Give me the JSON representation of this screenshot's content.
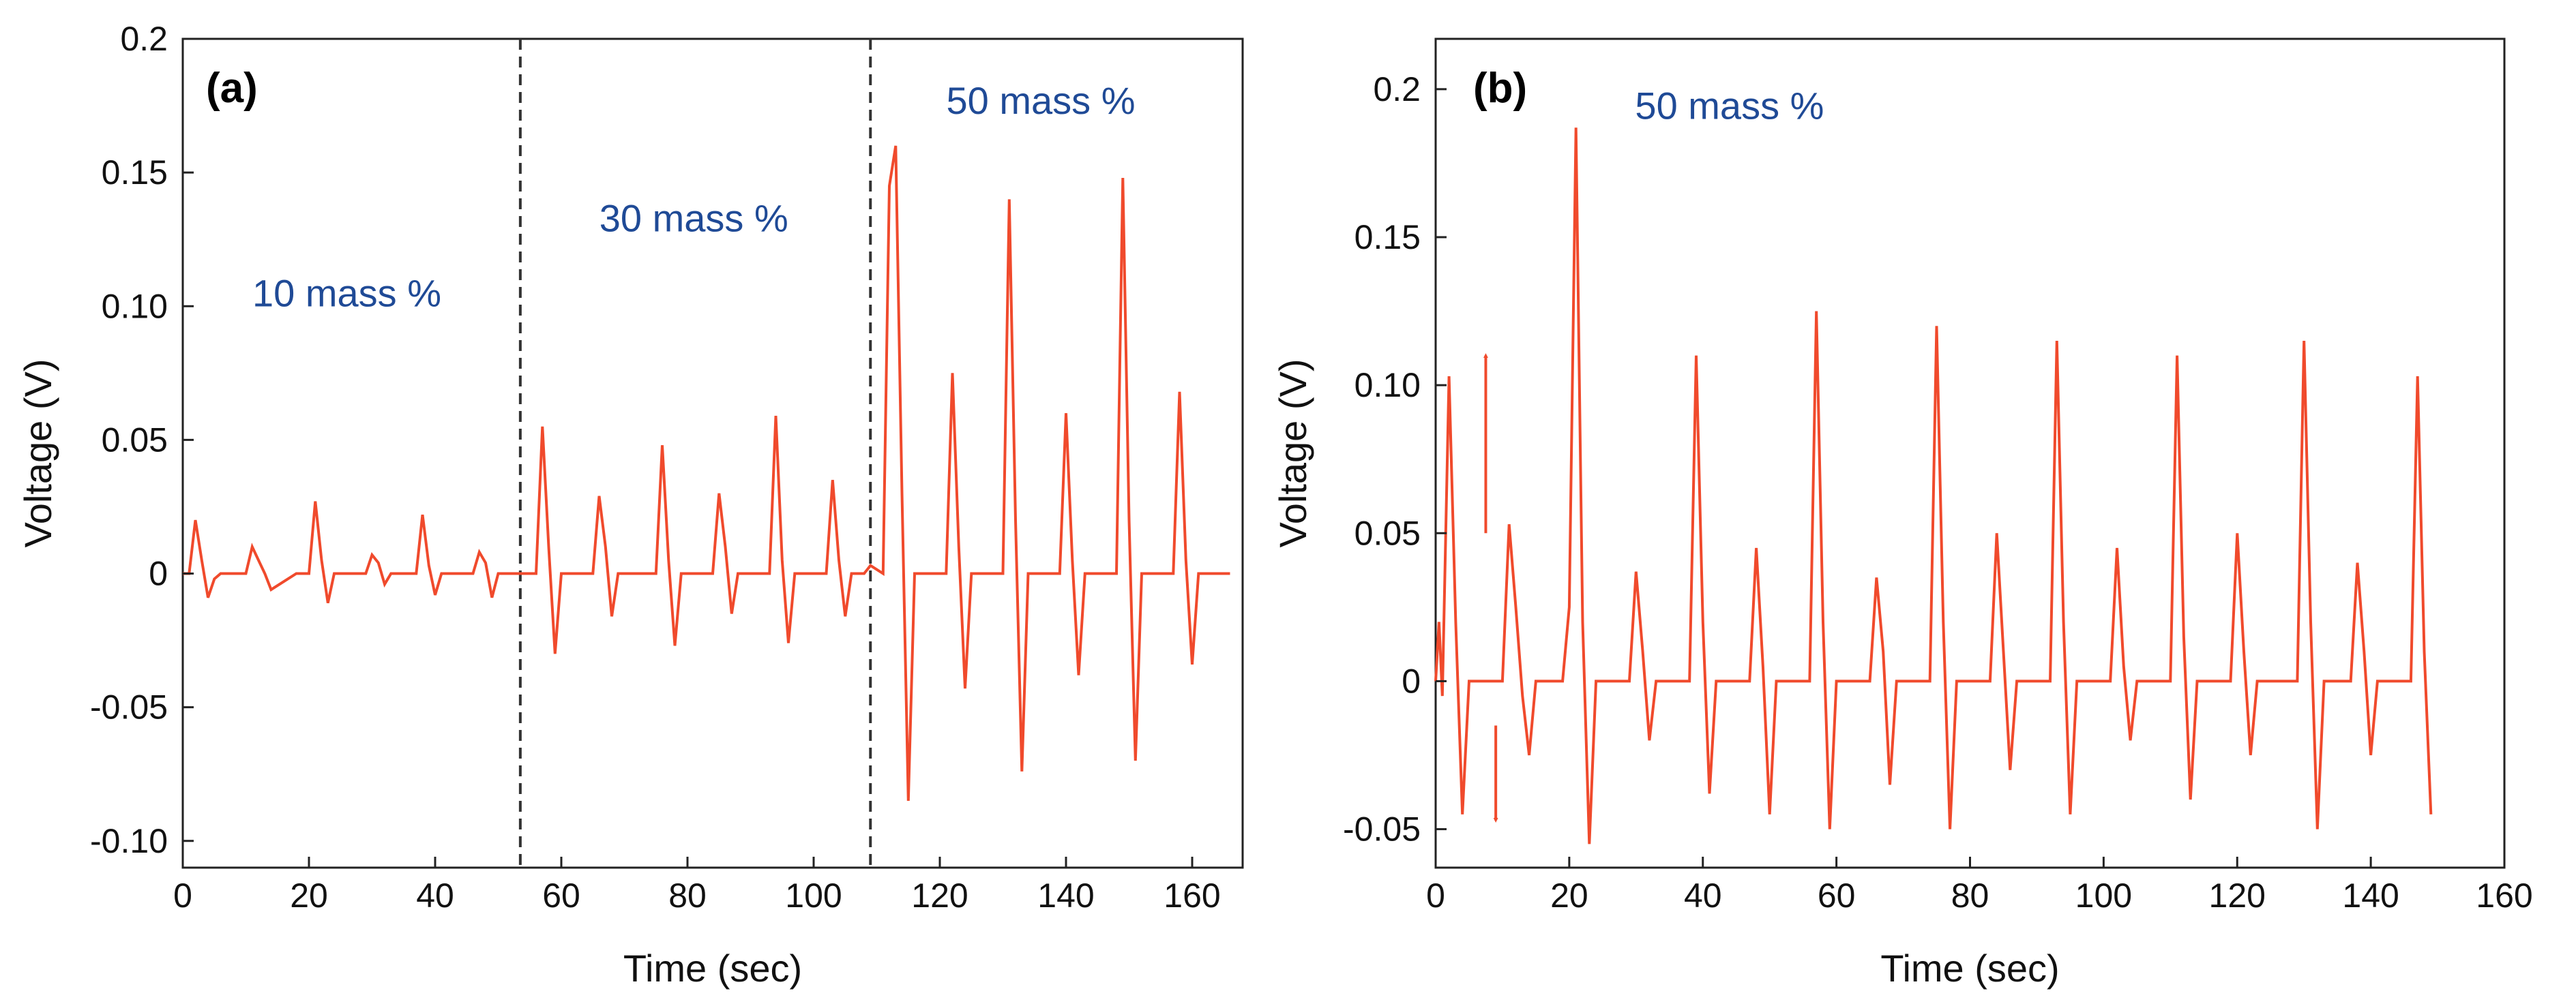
{
  "colors": {
    "trace": "#f04a2c",
    "annotation": "#1f4a96",
    "axis": "#222222"
  },
  "chart_data": [
    {
      "type": "line",
      "panel_label": "(a)",
      "xlabel": "Time (sec)",
      "ylabel": "Voltage (V)",
      "xlim": [
        0,
        168
      ],
      "ylim": [
        -0.11,
        0.2
      ],
      "x_ticks": [
        0,
        20,
        40,
        60,
        80,
        100,
        120,
        140,
        160
      ],
      "x_tick_labels": [
        "0",
        "20",
        "40",
        "60",
        "80",
        "100",
        "120",
        "140",
        "160"
      ],
      "y_ticks": [
        -0.1,
        -0.05,
        0,
        0.05,
        0.1,
        0.15,
        0.2
      ],
      "y_tick_labels": [
        "-0.10",
        "-0.05",
        "0",
        "0.05",
        "0.10",
        "0.15",
        "0.2"
      ],
      "grid": false,
      "dividers": [
        53.5,
        109
      ],
      "annotations": [
        {
          "text": "10 mass %",
          "x": 26,
          "y": 0.1
        },
        {
          "text": "30 mass %",
          "x": 81,
          "y": 0.128
        },
        {
          "text": "50 mass %",
          "x": 136,
          "y": 0.172
        }
      ],
      "series": [
        {
          "name": "Voltage",
          "x": [
            0,
            1,
            2,
            3,
            4,
            5,
            6,
            10,
            11,
            12,
            13,
            14,
            18,
            20,
            21,
            22,
            23,
            24,
            29,
            30,
            31,
            32,
            33,
            37,
            38,
            39,
            40,
            41,
            42,
            46,
            47,
            48,
            49,
            50,
            53,
            54,
            56,
            57,
            58,
            59,
            60,
            65,
            66,
            67,
            68,
            69,
            70,
            75,
            76,
            77,
            78,
            79,
            84,
            85,
            86,
            87,
            88,
            93,
            94,
            95,
            96,
            97,
            102,
            103,
            104,
            105,
            106,
            108,
            109,
            111,
            112,
            113,
            114,
            115,
            116,
            121,
            122,
            123,
            124,
            125,
            130,
            131,
            132,
            133,
            134,
            139,
            140,
            141,
            142,
            143,
            148,
            149,
            150,
            151,
            152,
            157,
            158,
            159,
            160,
            161,
            166
          ],
          "values": [
            0,
            0,
            0.02,
            0.005,
            -0.009,
            -0.002,
            0,
            0,
            0.01,
            0.005,
            0,
            -0.006,
            0,
            0,
            0.027,
            0.005,
            -0.011,
            0,
            0,
            0.007,
            0.004,
            -0.004,
            0,
            0,
            0.022,
            0.003,
            -0.008,
            0,
            0,
            0,
            0.008,
            0.004,
            -0.009,
            0,
            0,
            0,
            0,
            0.055,
            0.01,
            -0.03,
            0,
            0,
            0.029,
            0.01,
            -0.016,
            0,
            0,
            0,
            0.048,
            0.005,
            -0.027,
            0,
            0,
            0.03,
            0.01,
            -0.015,
            0,
            0,
            0.059,
            0.005,
            -0.026,
            0,
            0,
            0.035,
            0.005,
            -0.016,
            0,
            0,
            0.003,
            0,
            0.145,
            0.16,
            0.03,
            -0.085,
            0,
            0,
            0.075,
            0.01,
            -0.043,
            0,
            0,
            0.14,
            0.02,
            -0.074,
            0,
            0,
            0.06,
            0.005,
            -0.038,
            0,
            0,
            0.148,
            0.02,
            -0.07,
            0,
            0,
            0.068,
            0.005,
            -0.034,
            0,
            0
          ]
        }
      ]
    },
    {
      "type": "line",
      "panel_label": "(b)",
      "xlabel": "Time (sec)",
      "ylabel": "Voltage (V)",
      "xlim": [
        0,
        160
      ],
      "ylim": [
        -0.063,
        0.217
      ],
      "x_ticks": [
        0,
        20,
        40,
        60,
        80,
        100,
        120,
        140,
        160
      ],
      "x_tick_labels": [
        "0",
        "20",
        "40",
        "60",
        "80",
        "100",
        "120",
        "140",
        "160"
      ],
      "y_ticks": [
        -0.05,
        0,
        0.05,
        0.1,
        0.15,
        0.2
      ],
      "y_tick_labels": [
        "-0.05",
        "0",
        "0.05",
        "0.10",
        "0.15",
        "0.2"
      ],
      "grid": false,
      "annotations": [
        {
          "text": "50 mass %",
          "x": 44,
          "y": 0.19
        }
      ],
      "arrows": [
        {
          "x": 7.5,
          "from": 0.05,
          "to": 0.11
        },
        {
          "x": 9,
          "from": -0.015,
          "to": -0.047
        }
      ],
      "series": [
        {
          "name": "Voltage",
          "x": [
            0,
            0.5,
            1,
            2,
            3,
            4,
            5,
            10,
            11,
            12,
            13,
            14,
            15,
            19,
            20,
            21,
            22,
            23,
            24,
            29,
            30,
            31,
            32,
            33,
            38,
            39,
            40,
            41,
            42,
            47,
            48,
            49,
            50,
            51,
            56,
            57,
            58,
            59,
            60,
            65,
            66,
            67,
            68,
            69,
            74,
            75,
            76,
            77,
            78,
            83,
            84,
            85,
            86,
            87,
            92,
            93,
            94,
            95,
            96,
            101,
            102,
            103,
            104,
            105,
            110,
            111,
            112,
            113,
            114,
            119,
            120,
            121,
            122,
            123,
            129,
            130,
            131,
            132,
            133,
            137,
            138,
            139,
            140,
            141,
            146,
            147,
            148,
            149
          ],
          "values": [
            0,
            0.02,
            -0.005,
            0.103,
            0.02,
            -0.045,
            0,
            0,
            0.053,
            0.025,
            -0.005,
            -0.025,
            0,
            0,
            0.025,
            0.187,
            0.02,
            -0.055,
            0,
            0,
            0.037,
            0.01,
            -0.02,
            0,
            0,
            0.11,
            0.02,
            -0.038,
            0,
            0,
            0.045,
            0.005,
            -0.045,
            0,
            0,
            0.125,
            0.02,
            -0.05,
            0,
            0,
            0.035,
            0.01,
            -0.035,
            0,
            0,
            0.12,
            0.02,
            -0.05,
            0,
            0,
            0.05,
            0.01,
            -0.03,
            0,
            0,
            0.115,
            0.02,
            -0.045,
            0,
            0,
            0.045,
            0.005,
            -0.02,
            0,
            0,
            0.11,
            0.015,
            -0.04,
            0,
            0,
            0.05,
            0.01,
            -0.025,
            0,
            0,
            0.115,
            0.02,
            -0.05,
            0,
            0,
            0.04,
            0.01,
            -0.025,
            0,
            0,
            0.103,
            0.01,
            -0.045
          ]
        }
      ]
    }
  ]
}
